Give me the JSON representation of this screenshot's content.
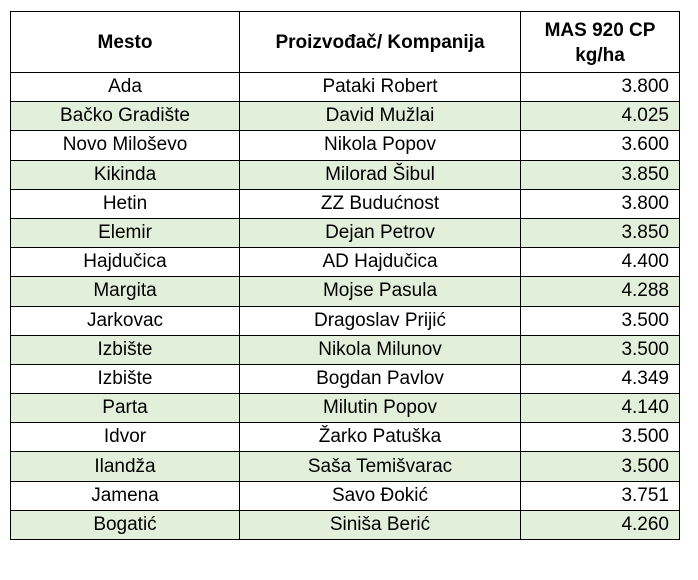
{
  "table": {
    "headers": {
      "place": "Mesto",
      "producer": "Proizvođač/ Kompanija",
      "yield_line1": "MAS 920 CP",
      "yield_line2": "kg/ha"
    },
    "shade_color": "#e2efda",
    "rows": [
      {
        "place": "Ada",
        "producer": "Pataki Robert",
        "yield": "3.800"
      },
      {
        "place": "Bačko Gradište",
        "producer": "David Mužlai",
        "yield": "4.025"
      },
      {
        "place": "Novo Miloševo",
        "producer": "Nikola Popov",
        "yield": "3.600"
      },
      {
        "place": "Kikinda",
        "producer": "Milorad Šibul",
        "yield": "3.850"
      },
      {
        "place": "Hetin",
        "producer": "ZZ Budućnost",
        "yield": "3.800"
      },
      {
        "place": "Elemir",
        "producer": "Dejan Petrov",
        "yield": "3.850"
      },
      {
        "place": "Hajdučica",
        "producer": "AD Hajdučica",
        "yield": "4.400"
      },
      {
        "place": "Margita",
        "producer": "Mojse Pasula",
        "yield": "4.288"
      },
      {
        "place": "Jarkovac",
        "producer": "Dragoslav Prijić",
        "yield": "3.500"
      },
      {
        "place": "Izbište",
        "producer": "Nikola Milunov",
        "yield": "3.500"
      },
      {
        "place": "Izbište",
        "producer": "Bogdan Pavlov",
        "yield": "4.349"
      },
      {
        "place": "Parta",
        "producer": "Milutin Popov",
        "yield": "4.140"
      },
      {
        "place": "Idvor",
        "producer": "Žarko Patuška",
        "yield": "3.500"
      },
      {
        "place": "Ilandža",
        "producer": "Saša Temišvarac",
        "yield": "3.500"
      },
      {
        "place": "Jamena",
        "producer": "Savo Đokić",
        "yield": "3.751"
      },
      {
        "place": "Bogatić",
        "producer": "Siniša Berić",
        "yield": "4.260"
      }
    ]
  }
}
